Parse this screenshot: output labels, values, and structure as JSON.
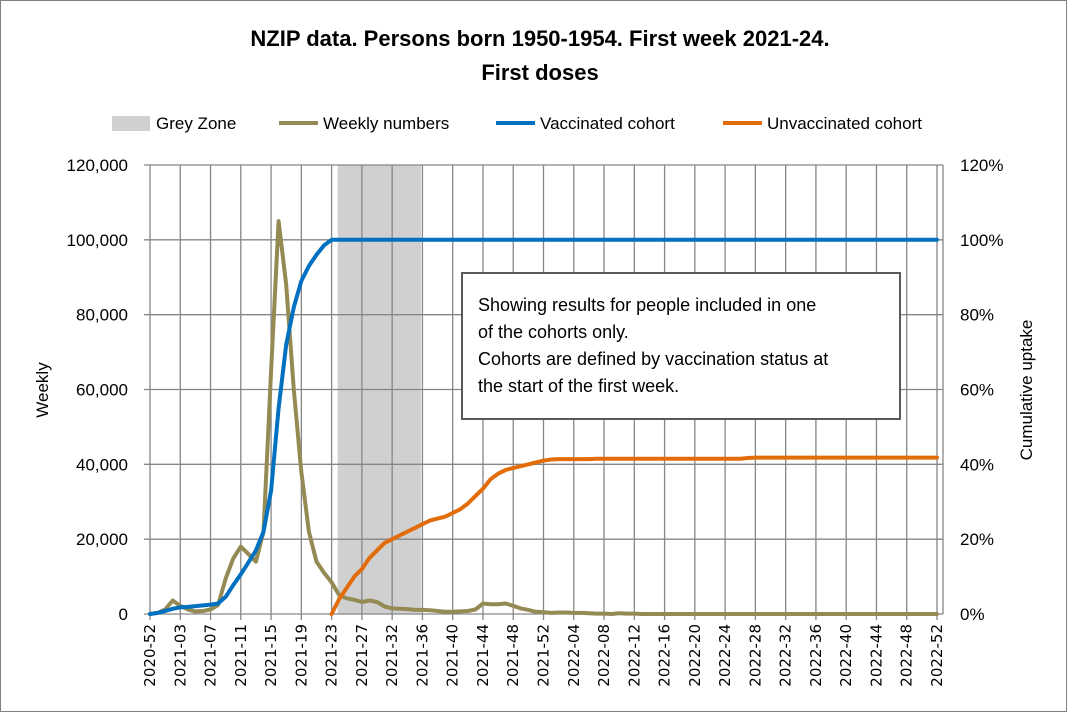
{
  "chart_data": {
    "type": "line",
    "title_lines": [
      "NZIP data. Persons born 1950-1954. First week 2021-24.",
      "First doses"
    ],
    "legend": [
      {
        "name": "Grey Zone",
        "kind": "area",
        "color": "#d0d0d0"
      },
      {
        "name": "Weekly numbers",
        "kind": "line",
        "color": "#948a54"
      },
      {
        "name": "Vaccinated cohort",
        "kind": "line",
        "color": "#0070c0"
      },
      {
        "name": "Unvaccinated cohort",
        "kind": "line",
        "color": "#e36c0a"
      }
    ],
    "legend_position": "top",
    "ylabel": "Weekly",
    "y2label": "Cumulative uptake",
    "ylim": [
      0,
      120000
    ],
    "y2lim": [
      0,
      1.2
    ],
    "yticks": [
      "0",
      "20,000",
      "40,000",
      "60,000",
      "80,000",
      "100,000",
      "120,000"
    ],
    "y2ticks": [
      "0%",
      "20%",
      "40%",
      "60%",
      "80%",
      "100%",
      "120%"
    ],
    "grid": true,
    "n_points": 105,
    "xtick_every": 4,
    "xtick_labels": [
      "2020-52",
      "2021-03",
      "2021-07",
      "2021-11",
      "2021-15",
      "2021-19",
      "2021-23",
      "2021-27",
      "2021-32",
      "2021-36",
      "2021-40",
      "2021-44",
      "2021-48",
      "2021-52",
      "2022-04",
      "2022-08",
      "2022-12",
      "2022-16",
      "2022-20",
      "2022-24",
      "2022-28",
      "2022-32",
      "2022-36",
      "2022-40",
      "2022-44",
      "2022-48",
      "2022-52"
    ],
    "grey_zone_index_range": [
      24.8,
      35.8
    ],
    "series": [
      {
        "name": "Weekly numbers",
        "axis": "left",
        "color": "#948a54",
        "values": [
          0,
          300,
          1200,
          3600,
          2200,
          1200,
          700,
          800,
          1200,
          2400,
          9500,
          14800,
          18000,
          16000,
          14000,
          22000,
          65000,
          105000,
          88000,
          60000,
          38000,
          22000,
          14000,
          11000,
          8500,
          5000,
          4200,
          3800,
          3200,
          3600,
          3200,
          2000,
          1500,
          1400,
          1300,
          1100,
          1100,
          1000,
          800,
          600,
          600,
          700,
          800,
          1200,
          2800,
          2600,
          2600,
          2800,
          2200,
          1500,
          1100,
          600,
          500,
          300,
          400,
          400,
          300,
          300,
          200,
          100,
          100,
          0,
          200,
          100,
          100,
          0,
          0,
          0,
          0,
          0,
          0,
          0,
          0,
          0,
          0,
          0,
          0,
          0,
          0,
          0,
          0,
          0,
          0,
          0,
          0,
          0,
          0,
          0,
          0,
          0,
          0,
          0,
          0,
          0,
          0,
          0,
          0,
          0,
          0,
          0,
          0,
          0,
          0,
          0,
          0
        ]
      },
      {
        "name": "Vaccinated cohort",
        "axis": "right",
        "color": "#0070c0",
        "values": [
          0,
          0.003,
          0.008,
          0.014,
          0.018,
          0.019,
          0.021,
          0.023,
          0.025,
          0.028,
          0.046,
          0.077,
          0.106,
          0.138,
          0.17,
          0.22,
          0.33,
          0.55,
          0.72,
          0.82,
          0.89,
          0.93,
          0.96,
          0.985,
          1,
          1,
          1,
          1,
          1,
          1,
          1,
          1,
          1,
          1,
          1,
          1,
          1,
          1,
          1,
          1,
          1,
          1,
          1,
          1,
          1,
          1,
          1,
          1,
          1,
          1,
          1,
          1,
          1,
          1,
          1,
          1,
          1,
          1,
          1,
          1,
          1,
          1,
          1,
          1,
          1,
          1,
          1,
          1,
          1,
          1,
          1,
          1,
          1,
          1,
          1,
          1,
          1,
          1,
          1,
          1,
          1,
          1,
          1,
          1,
          1,
          1,
          1,
          1,
          1,
          1,
          1,
          1,
          1,
          1,
          1,
          1,
          1,
          1,
          1,
          1,
          1,
          1,
          1,
          1,
          1
        ]
      },
      {
        "name": "Unvaccinated cohort",
        "axis": "right",
        "color": "#e36c0a",
        "index_start": 24,
        "values": [
          0,
          0.04,
          0.07,
          0.1,
          0.12,
          0.15,
          0.17,
          0.19,
          0.2,
          0.21,
          0.22,
          0.23,
          0.24,
          0.25,
          0.255,
          0.26,
          0.27,
          0.28,
          0.295,
          0.315,
          0.335,
          0.36,
          0.375,
          0.385,
          0.39,
          0.395,
          0.4,
          0.405,
          0.41,
          0.413,
          0.414,
          0.414,
          0.414,
          0.414,
          0.414,
          0.415,
          0.415,
          0.415,
          0.415,
          0.415,
          0.415,
          0.415,
          0.415,
          0.415,
          0.415,
          0.415,
          0.415,
          0.415,
          0.415,
          0.415,
          0.415,
          0.415,
          0.415,
          0.415,
          0.415,
          0.417,
          0.418,
          0.418,
          0.418,
          0.418,
          0.418,
          0.418,
          0.418,
          0.418,
          0.418,
          0.418,
          0.418,
          0.418,
          0.418,
          0.418,
          0.418,
          0.418,
          0.418,
          0.418,
          0.418,
          0.418,
          0.418,
          0.418,
          0.418,
          0.418,
          0.418
        ]
      }
    ]
  },
  "note_lines": [
    "Showing results for people included in one",
    "of the cohorts only.",
    "Cohorts are defined by vaccination status at",
    "the start of the first week."
  ]
}
